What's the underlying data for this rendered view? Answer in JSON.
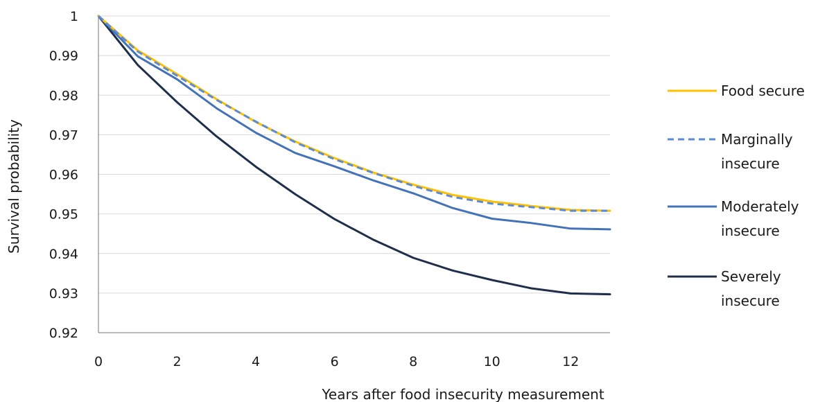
{
  "chart_data": {
    "type": "line",
    "title": "",
    "xlabel": "Years after food insecurity measurement",
    "ylabel": "Survival probability",
    "xlim": [
      0,
      13
    ],
    "ylim": [
      0.92,
      1
    ],
    "xticks": [
      0,
      2,
      4,
      6,
      8,
      10,
      12
    ],
    "xtick_labels": [
      "0",
      "2",
      "4",
      "6",
      "8",
      "10",
      "12"
    ],
    "yticks": [
      0.92,
      0.93,
      0.94,
      0.95,
      0.96,
      0.97,
      0.98,
      0.99,
      1
    ],
    "ytick_labels": [
      "0.92",
      "0.93",
      "0.94",
      "0.95",
      "0.96",
      "0.97",
      "0.98",
      "0.99",
      "1"
    ],
    "grid": "horizontal",
    "legend_position": "right",
    "x": [
      0,
      1,
      2,
      3,
      4,
      5,
      6,
      7,
      8,
      9,
      10,
      11,
      12,
      13
    ],
    "series": [
      {
        "name": "Food secure",
        "color": "#FFC000",
        "dash": "solid",
        "label_lines": [
          "Food secure"
        ],
        "values": [
          1.0,
          0.9913,
          0.9853,
          0.979,
          0.9732,
          0.9683,
          0.9641,
          0.9604,
          0.9574,
          0.9548,
          0.9531,
          0.952,
          0.951,
          0.9508
        ]
      },
      {
        "name": "Marginally insecure",
        "color": "#5B8BD6",
        "dash": "dashed",
        "label_lines": [
          "Marginally",
          "insecure"
        ],
        "values": [
          1.0,
          0.991,
          0.9849,
          0.9788,
          0.9733,
          0.9681,
          0.9638,
          0.9603,
          0.9571,
          0.9543,
          0.9526,
          0.9517,
          0.9508,
          0.9508
        ]
      },
      {
        "name": "Moderately insecure",
        "color": "#4472B8",
        "dash": "solid",
        "label_lines": [
          "Moderately",
          "insecure"
        ],
        "values": [
          1.0,
          0.9898,
          0.984,
          0.9767,
          0.9705,
          0.9654,
          0.962,
          0.9584,
          0.9552,
          0.9515,
          0.9488,
          0.9477,
          0.9463,
          0.9461
        ]
      },
      {
        "name": "Severely insecure",
        "color": "#1F2E4A",
        "dash": "solid",
        "label_lines": [
          "Severely",
          "insecure"
        ],
        "values": [
          1.0,
          0.9876,
          0.9782,
          0.9696,
          0.9619,
          0.955,
          0.9487,
          0.9434,
          0.9389,
          0.9357,
          0.9333,
          0.9312,
          0.9299,
          0.9297
        ]
      }
    ]
  }
}
